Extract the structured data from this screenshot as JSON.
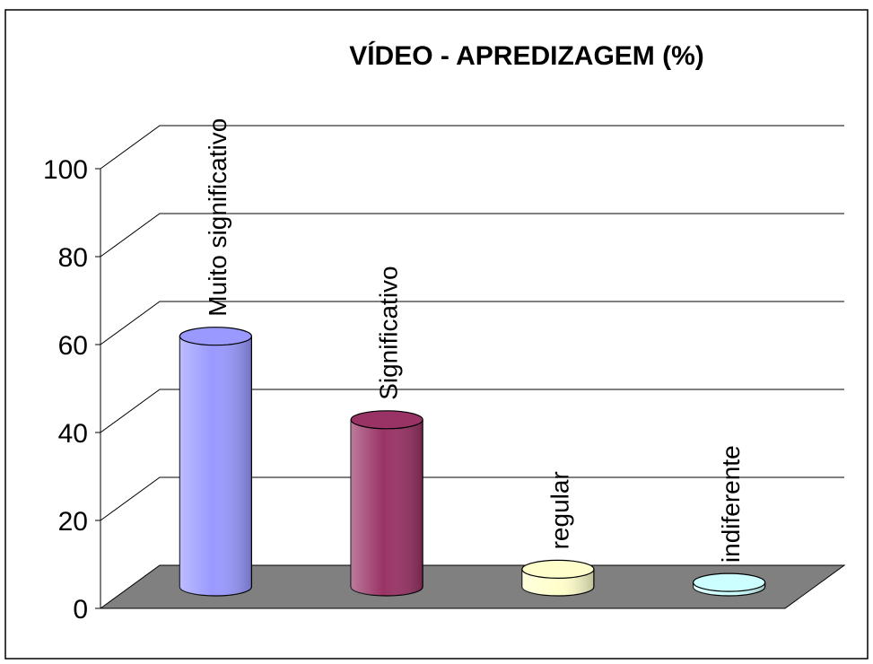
{
  "chart_data": {
    "type": "bar3d",
    "title": "VÍDEO - APREDIZAGEM (%)",
    "categories": [
      "Muito significativo",
      "Significativo",
      "regular",
      "indiferente"
    ],
    "values": [
      57,
      38,
      4,
      1
    ],
    "colors": [
      "#9999ff",
      "#993366",
      "#ffffcc",
      "#ccffff"
    ],
    "ylim": [
      0,
      100
    ],
    "yticks": [
      0,
      20,
      40,
      60,
      80,
      100
    ],
    "grid": true
  }
}
